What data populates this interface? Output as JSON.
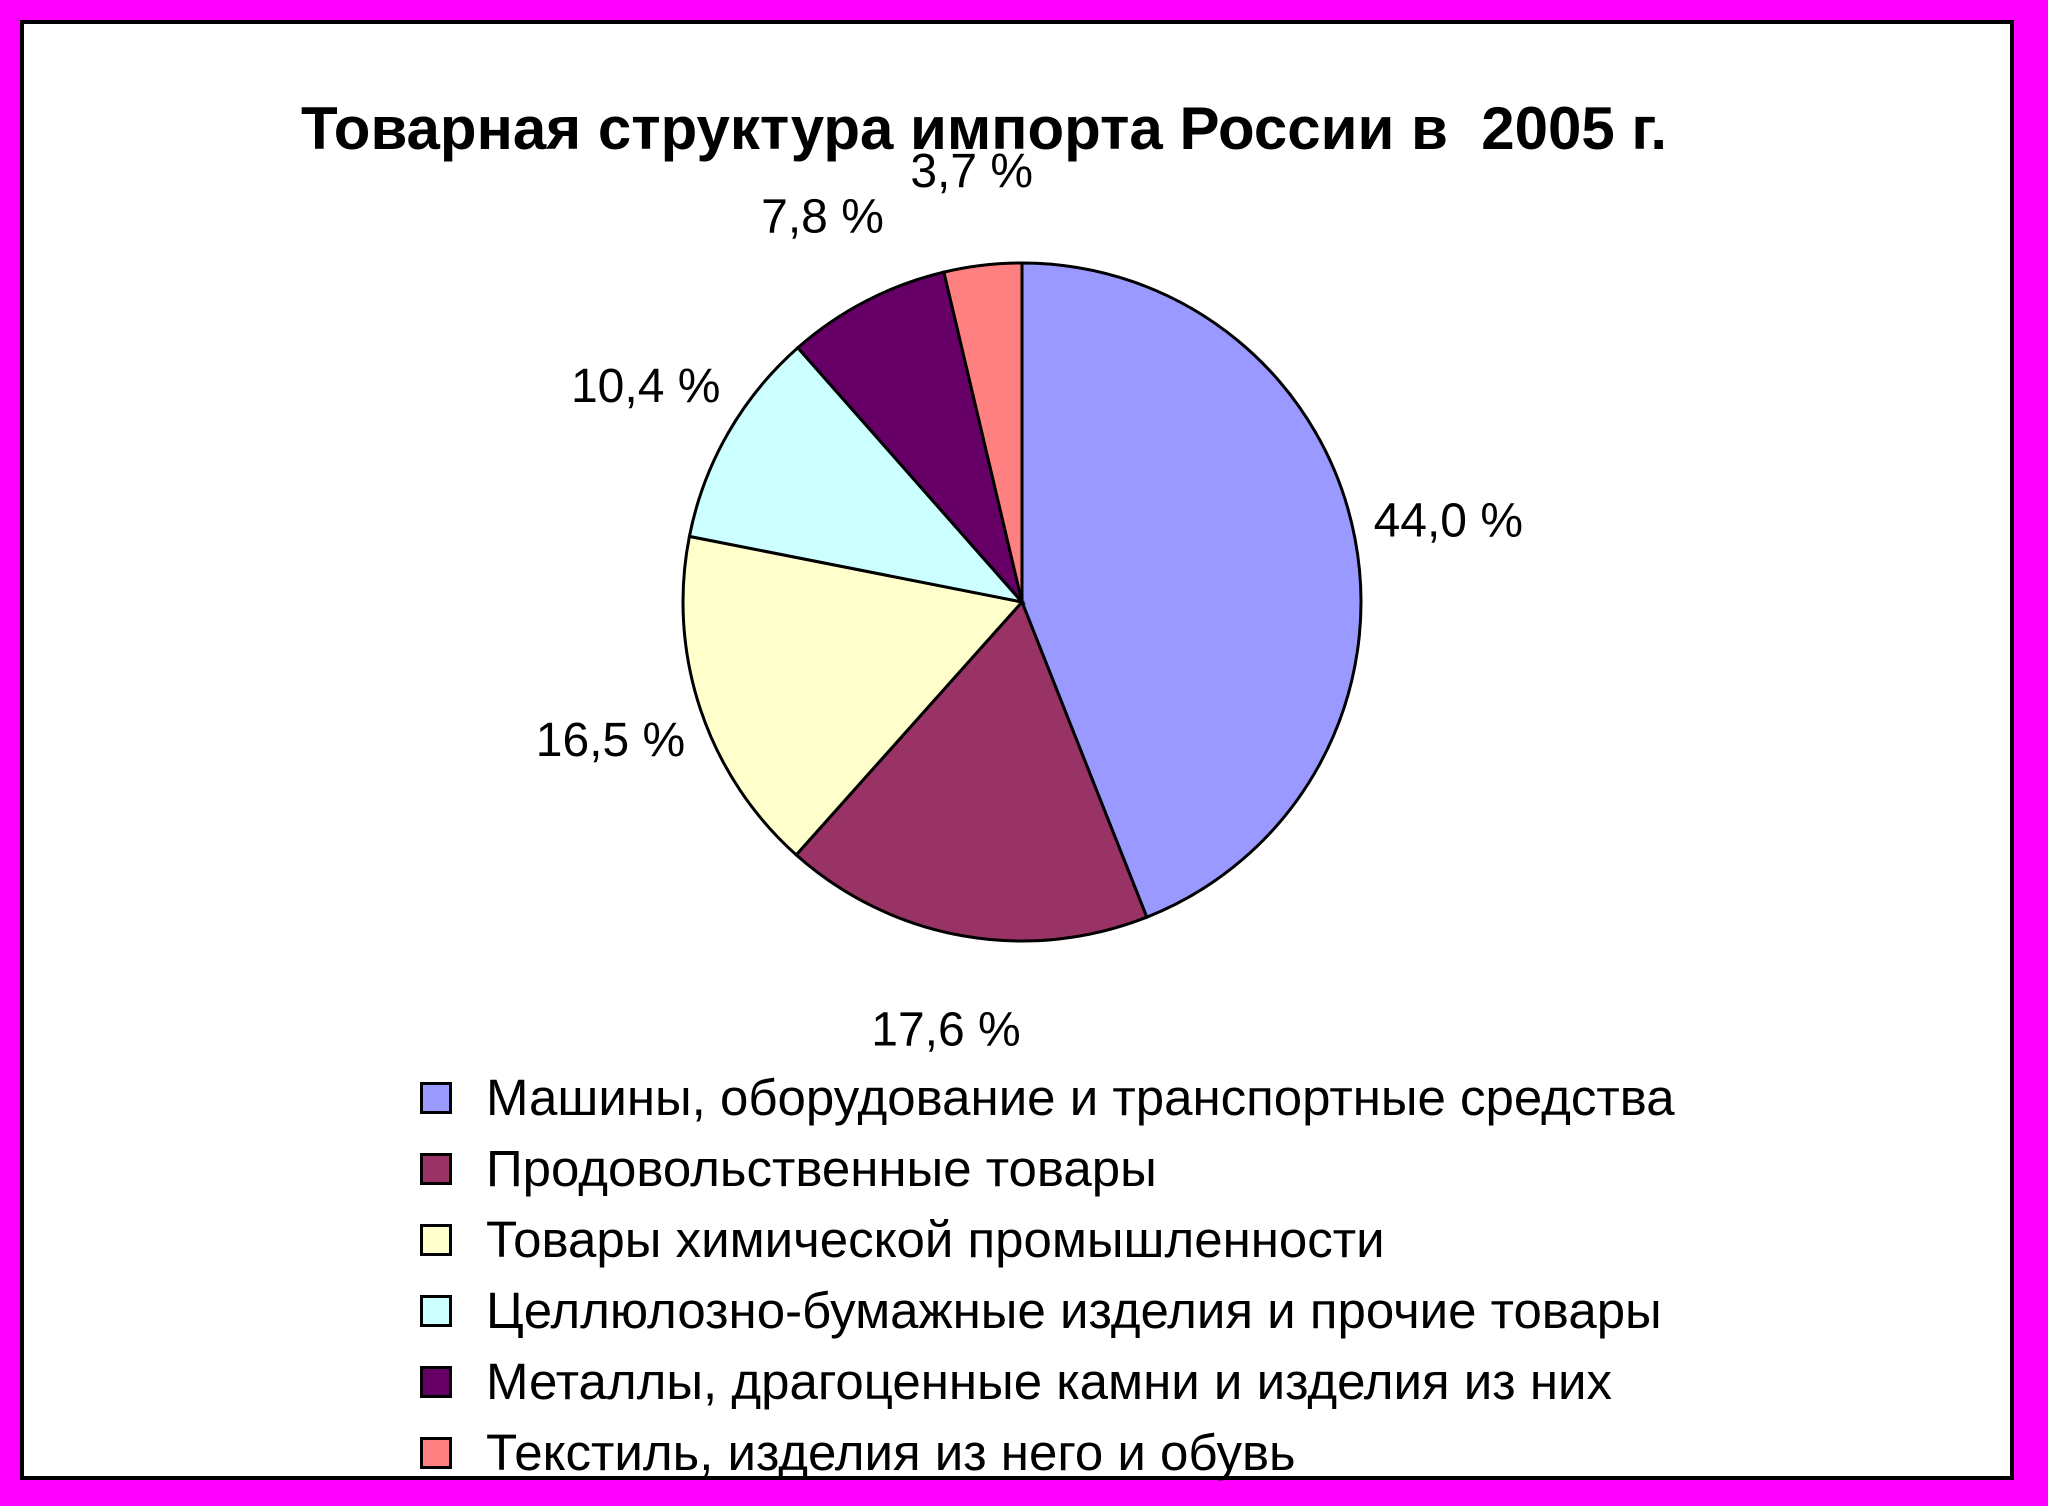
{
  "chart_data": {
    "type": "pie",
    "title": "Товарная структура импорта России в  2005 г.",
    "unit": "%",
    "legend_position": "bottom",
    "slices": [
      {
        "name": "Машины, оборудование и транспортные средства",
        "value": 44.0,
        "label": "44,0 %",
        "color": "#9999ff"
      },
      {
        "name": "Продовольственные товары",
        "value": 17.6,
        "label": "17,6 %",
        "color": "#993366"
      },
      {
        "name": "Товары химической промышленности",
        "value": 16.5,
        "label": "16,5 %",
        "color": "#ffffcc"
      },
      {
        "name": "Целлюлозно-бумажные изделия и прочие товары",
        "value": 10.4,
        "label": "10,4 %",
        "color": "#ccffff"
      },
      {
        "name": "Металлы, драгоценные камни и изделия из них",
        "value": 7.8,
        "label": "7,8 %",
        "color": "#660066"
      },
      {
        "name": "Текстиль, изделия из него и обувь",
        "value": 3.7,
        "label": "3,7 %",
        "color": "#ff8080"
      }
    ]
  }
}
